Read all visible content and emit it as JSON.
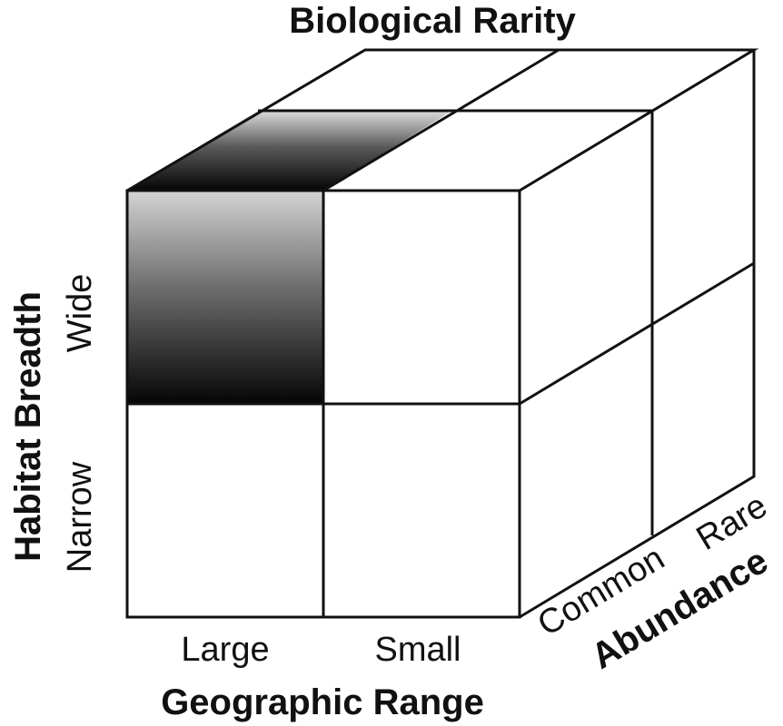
{
  "title": "Biological Rarity",
  "axes": {
    "geographic_range": {
      "label": "Geographic Range",
      "categories": [
        "Large",
        "Small"
      ]
    },
    "habitat_breadth": {
      "label": "Habitat Breadth",
      "categories": [
        "Wide",
        "Narrow"
      ]
    },
    "abundance": {
      "label": "Abundance",
      "categories": [
        "Common",
        "Rare"
      ]
    }
  },
  "highlighted_cell": {
    "geographic_range": "Large",
    "habitat_breadth": "Wide",
    "abundance": "Common",
    "color": "#000000"
  },
  "colors": {
    "line": "#111111",
    "background": "#ffffff"
  }
}
